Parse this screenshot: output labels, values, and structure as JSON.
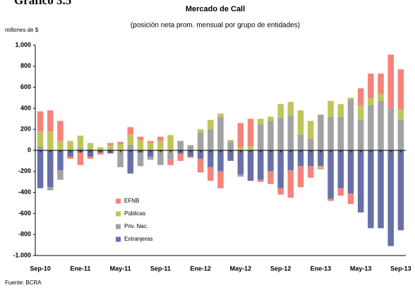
{
  "chart_data": {
    "type": "bar",
    "header": "Gráfico 3.5",
    "title": "Mercado de Call",
    "subtitle": "(posición neta prom. mensual por grupo de entidades)",
    "y_label": "millones de $",
    "source": "Fuente: BCRA",
    "categories": [
      "Sep-10",
      null,
      null,
      null,
      "Ene-11",
      null,
      null,
      null,
      "May-11",
      null,
      null,
      null,
      "Sep-11",
      null,
      null,
      null,
      "Ene-12",
      null,
      null,
      null,
      "May-12",
      null,
      null,
      null,
      "Sep-12",
      null,
      null,
      null,
      "Ene-13",
      null,
      null,
      null,
      "May-13",
      null,
      null,
      null,
      "Sep-13"
    ],
    "series": [
      {
        "name": "EFNB",
        "color": "#f4837a",
        "values": [
          190,
          200,
          190,
          -20,
          -120,
          -20,
          -20,
          20,
          20,
          70,
          30,
          20,
          40,
          -50,
          -70,
          -10,
          -130,
          -130,
          -160,
          0,
          230,
          260,
          -20,
          -120,
          -60,
          -260,
          -200,
          -110,
          -10,
          -20,
          -70,
          -100,
          160,
          230,
          190,
          510,
          380
        ]
      },
      {
        "name": "Públicas",
        "color": "#bfc55b",
        "values": [
          140,
          180,
          90,
          90,
          120,
          60,
          30,
          40,
          60,
          100,
          100,
          70,
          90,
          145,
          0,
          0,
          30,
          90,
          30,
          20,
          30,
          40,
          50,
          40,
          130,
          130,
          230,
          170,
          -20,
          150,
          120,
          20,
          140,
          70,
          70,
          0,
          100
        ]
      },
      {
        "name": "Priv. Nac.",
        "color": "#a2a2a2",
        "values": [
          40,
          -30,
          -90,
          0,
          20,
          10,
          0,
          10,
          -160,
          50,
          -130,
          -30,
          -130,
          -90,
          90,
          50,
          170,
          200,
          320,
          80,
          -20,
          0,
          250,
          280,
          310,
          330,
          150,
          110,
          340,
          320,
          320,
          480,
          290,
          430,
          470,
          400,
          290
        ]
      },
      {
        "name": "Extranjeras",
        "color": "#6770a8",
        "values": [
          -360,
          -350,
          -190,
          -60,
          -20,
          -60,
          -20,
          -30,
          0,
          -220,
          -20,
          -60,
          -10,
          0,
          -30,
          -60,
          -80,
          -160,
          -200,
          -100,
          -230,
          -290,
          -280,
          -200,
          -360,
          -190,
          -150,
          -150,
          -150,
          -460,
          -360,
          -410,
          -590,
          -740,
          -740,
          -910,
          -760
        ]
      }
    ],
    "ylim": [
      -1000,
      1000
    ],
    "yticks": [
      {
        "value": -1000,
        "label": "-1.000"
      },
      -800,
      -600,
      -400,
      -200,
      0,
      200,
      400,
      600,
      800,
      {
        "value": 1000,
        "label": "1.000"
      }
    ]
  }
}
